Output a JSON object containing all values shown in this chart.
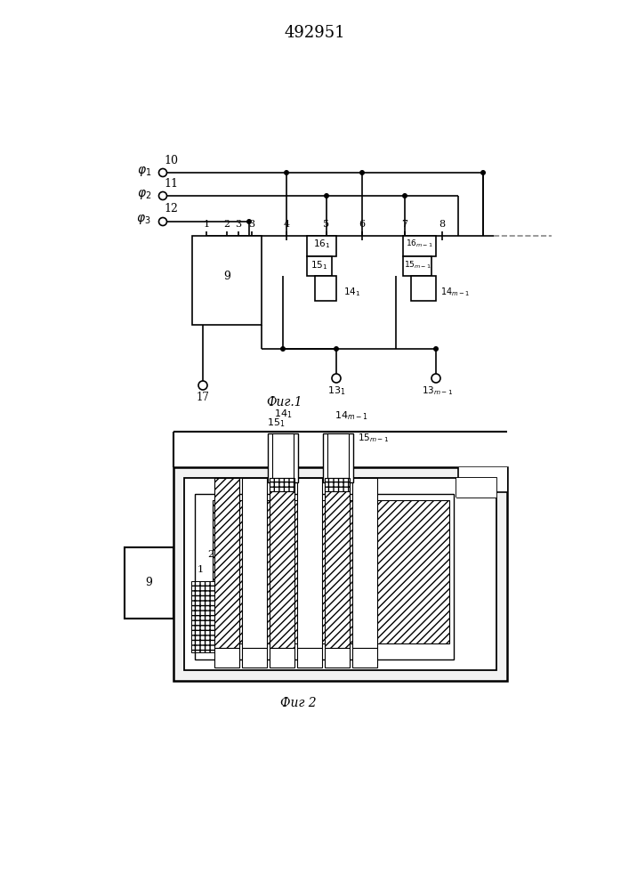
{
  "title": "492951",
  "fig1_caption": "Фиг.1",
  "fig2_caption": "Фиг 2",
  "bg_color": "#ffffff",
  "line_color": "#000000"
}
